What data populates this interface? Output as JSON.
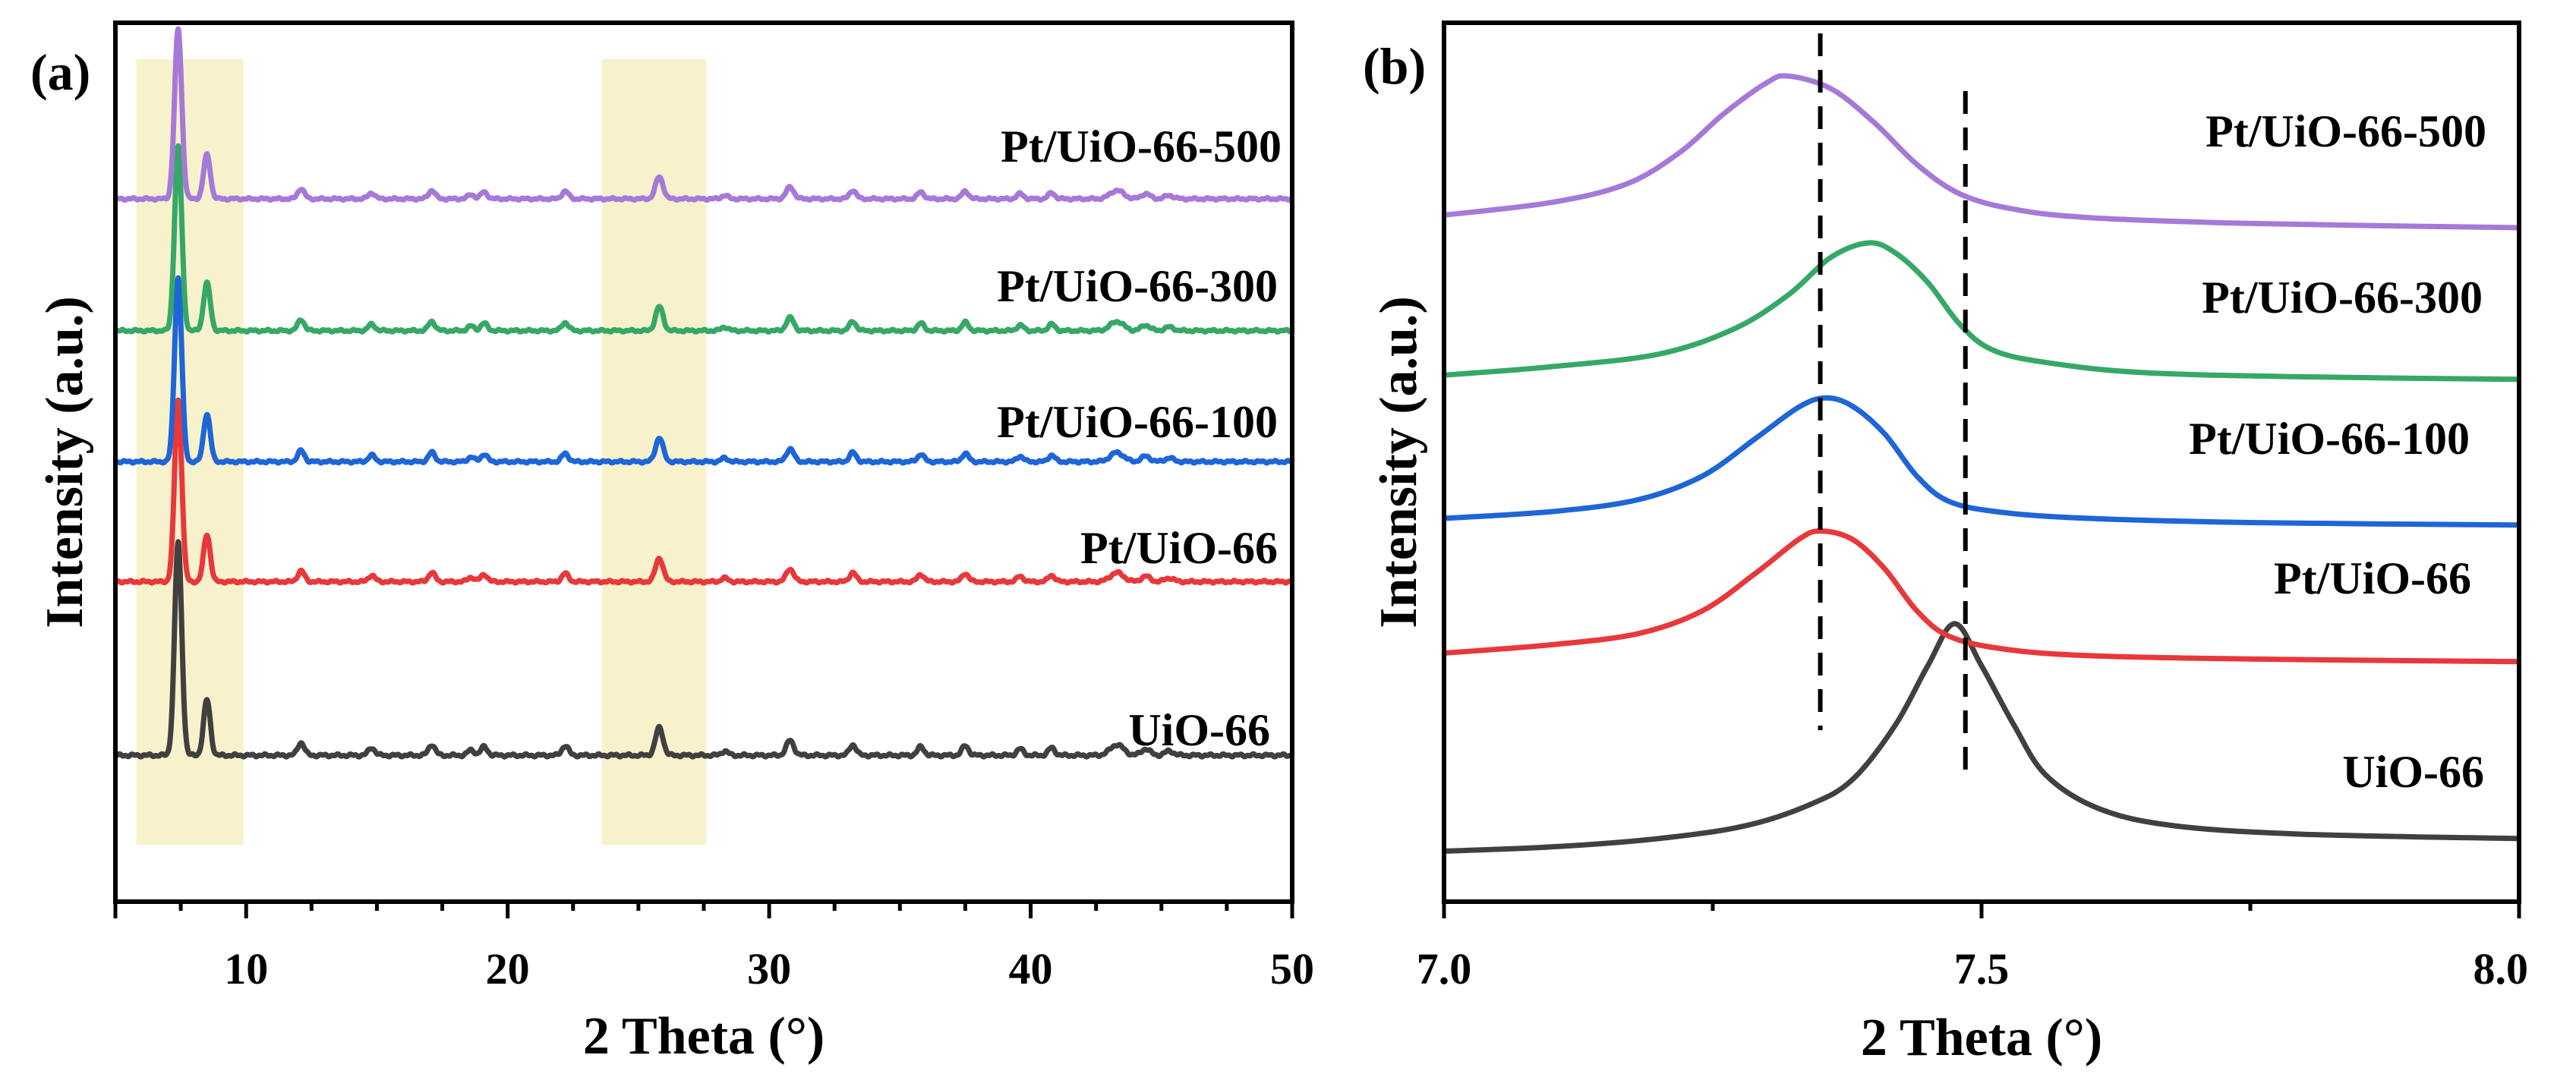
{
  "chart_data": [
    {
      "panel_label": "(a)",
      "type": "line",
      "xlabel": "2 Theta (°)",
      "ylabel": "Intensity (a.u.)",
      "xlim": [
        5,
        50
      ],
      "xticks": [
        10,
        20,
        30,
        40,
        50
      ],
      "xtick_labels": [
        "10",
        "20",
        "30",
        "40",
        "50"
      ],
      "highlight_ranges": [
        [
          5.8,
          9.9
        ],
        [
          23.6,
          27.6
        ]
      ],
      "highlight_color": "#f8f2cc",
      "peaks": [
        {
          "pos": 7.4,
          "rel": 1.0,
          "w": 0.16
        },
        {
          "pos": 8.5,
          "rel": 0.26,
          "w": 0.15
        },
        {
          "pos": 12.1,
          "rel": 0.06,
          "w": 0.15
        },
        {
          "pos": 14.8,
          "rel": 0.035,
          "w": 0.15
        },
        {
          "pos": 17.1,
          "rel": 0.05,
          "w": 0.15
        },
        {
          "pos": 18.6,
          "rel": 0.025,
          "w": 0.15
        },
        {
          "pos": 19.1,
          "rel": 0.04,
          "w": 0.15
        },
        {
          "pos": 22.2,
          "rel": 0.045,
          "w": 0.15
        },
        {
          "pos": 25.8,
          "rel": 0.13,
          "w": 0.17
        },
        {
          "pos": 28.3,
          "rel": 0.02,
          "w": 0.15
        },
        {
          "pos": 30.8,
          "rel": 0.07,
          "w": 0.17
        },
        {
          "pos": 33.2,
          "rel": 0.05,
          "w": 0.15
        },
        {
          "pos": 35.8,
          "rel": 0.04,
          "w": 0.15
        },
        {
          "pos": 37.5,
          "rel": 0.045,
          "w": 0.15
        },
        {
          "pos": 39.6,
          "rel": 0.03,
          "w": 0.15
        },
        {
          "pos": 40.8,
          "rel": 0.035,
          "w": 0.15
        },
        {
          "pos": 43.3,
          "rel": 0.05,
          "w": 0.3
        },
        {
          "pos": 44.4,
          "rel": 0.03,
          "w": 0.2
        },
        {
          "pos": 45.3,
          "rel": 0.02,
          "w": 0.2
        }
      ],
      "series": [
        {
          "name": "UiO-66",
          "color": "#404040",
          "baseline": 0.12,
          "amplitude": 0.27
        },
        {
          "name": "Pt/UiO-66",
          "color": "#e8383a",
          "baseline": 0.34,
          "amplitude": 0.23
        },
        {
          "name": "Pt/UiO-66-100",
          "color": "#1e65d8",
          "baseline": 0.492,
          "amplitude": 0.233
        },
        {
          "name": "Pt/UiO-66-300",
          "color": "#36a866",
          "baseline": 0.658,
          "amplitude": 0.233
        },
        {
          "name": "Pt/UiO-66-500",
          "color": "#a679d8",
          "baseline": 0.825,
          "amplitude": 0.215
        }
      ]
    },
    {
      "panel_label": "(b)",
      "type": "line",
      "xlabel": "2 Theta (°)",
      "ylabel": "Intensity (a.u.)",
      "xlim": [
        7.0,
        8.0
      ],
      "xticks": [
        7.0,
        7.5,
        8.0
      ],
      "xtick_labels": [
        "7.0",
        "7.5",
        "8.0"
      ],
      "minor_xticks": [
        7.25,
        7.75
      ],
      "reference_lines": [
        7.35,
        7.485
      ],
      "series": [
        {
          "name": "UiO-66",
          "color": "#404040",
          "x": [
            7.0,
            7.1,
            7.2,
            7.28,
            7.34,
            7.38,
            7.42,
            7.45,
            7.475,
            7.5,
            7.53,
            7.56,
            7.61,
            7.68,
            7.8,
            8.0
          ],
          "y": [
            0.06,
            0.065,
            0.075,
            0.09,
            0.115,
            0.145,
            0.21,
            0.28,
            0.33,
            0.28,
            0.21,
            0.15,
            0.11,
            0.09,
            0.08,
            0.075
          ]
        },
        {
          "name": "Pt/UiO-66",
          "color": "#e8383a",
          "x": [
            7.0,
            7.1,
            7.18,
            7.24,
            7.29,
            7.33,
            7.35,
            7.38,
            7.41,
            7.44,
            7.47,
            7.52,
            7.6,
            7.75,
            8.0
          ],
          "y": [
            0.295,
            0.305,
            0.318,
            0.345,
            0.39,
            0.43,
            0.44,
            0.43,
            0.395,
            0.345,
            0.315,
            0.3,
            0.292,
            0.288,
            0.285
          ]
        },
        {
          "name": "Pt/UiO-66-100",
          "color": "#1e65d8",
          "x": [
            7.0,
            7.1,
            7.18,
            7.24,
            7.29,
            7.33,
            7.355,
            7.38,
            7.41,
            7.44,
            7.47,
            7.52,
            7.6,
            7.75,
            8.0
          ],
          "y": [
            0.455,
            0.463,
            0.477,
            0.505,
            0.55,
            0.587,
            0.598,
            0.588,
            0.555,
            0.505,
            0.475,
            0.462,
            0.455,
            0.45,
            0.447
          ]
        },
        {
          "name": "Pt/UiO-66-300",
          "color": "#36a866",
          "x": [
            7.0,
            7.1,
            7.2,
            7.27,
            7.32,
            7.36,
            7.395,
            7.42,
            7.45,
            7.48,
            7.51,
            7.56,
            7.65,
            7.8,
            8.0
          ],
          "y": [
            0.625,
            0.635,
            0.65,
            0.68,
            0.72,
            0.765,
            0.782,
            0.77,
            0.735,
            0.685,
            0.655,
            0.64,
            0.628,
            0.623,
            0.62
          ]
        },
        {
          "name": "Pt/UiO-66-500",
          "color": "#a679d8",
          "x": [
            7.0,
            7.1,
            7.17,
            7.22,
            7.26,
            7.3,
            7.32,
            7.36,
            7.4,
            7.44,
            7.48,
            7.53,
            7.6,
            7.75,
            8.0
          ],
          "y": [
            0.815,
            0.83,
            0.852,
            0.89,
            0.935,
            0.972,
            0.98,
            0.965,
            0.925,
            0.875,
            0.84,
            0.822,
            0.812,
            0.805,
            0.8
          ]
        }
      ]
    }
  ]
}
